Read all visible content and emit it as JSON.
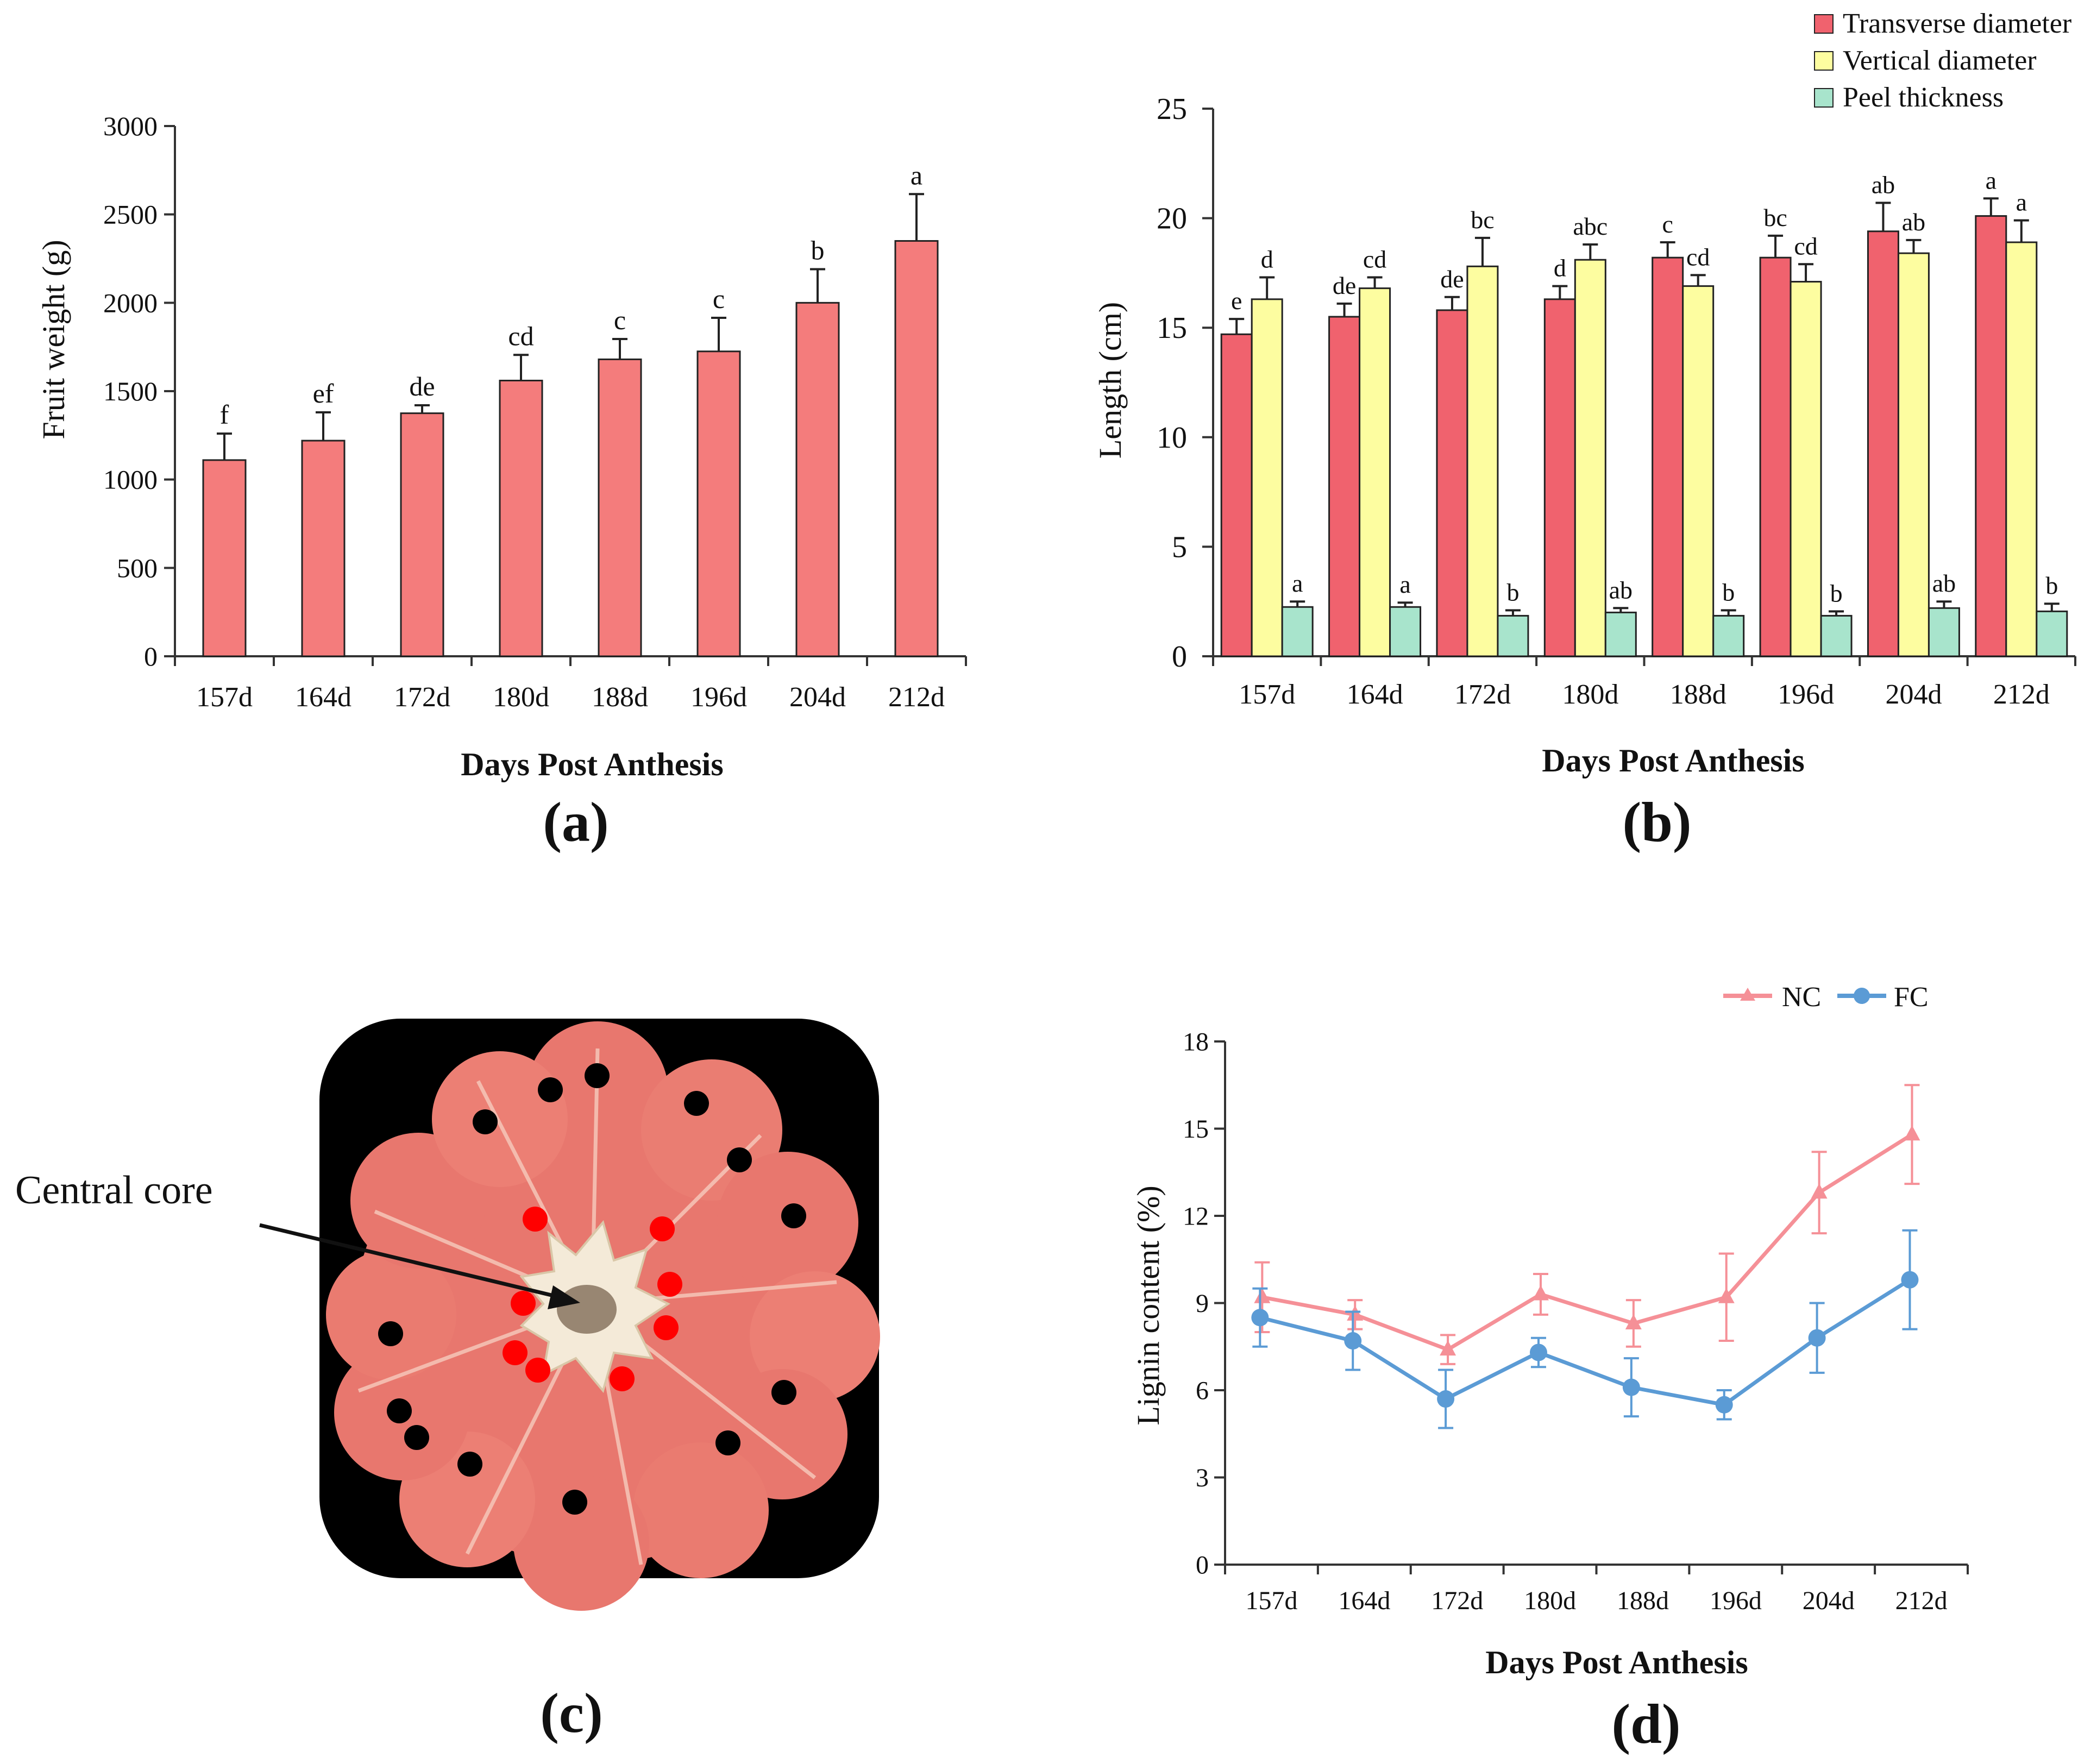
{
  "figure": {
    "x_categories": [
      "157d",
      "164d",
      "172d",
      "180d",
      "188d",
      "196d",
      "204d",
      "212d"
    ],
    "xlabel": "Days Post Anthesis"
  },
  "panels": {
    "a": "(a)",
    "b": "(b)",
    "c": "(c)",
    "d": "(d)"
  },
  "photo": {
    "annotation": "Central core",
    "outer_dot_color": "#000000",
    "inner_dot_color": "#ff0000",
    "flesh_color": "#e8776e"
  },
  "chart_data": [
    {
      "id": "a",
      "type": "bar",
      "title": "",
      "xlabel": "Days Post Anthesis",
      "ylabel": "Fruit weight (g)",
      "ylim": [
        0,
        3000
      ],
      "yticks": [
        0,
        500,
        1000,
        1500,
        2000,
        2500,
        3000
      ],
      "categories": [
        "157d",
        "164d",
        "172d",
        "180d",
        "188d",
        "196d",
        "204d",
        "212d"
      ],
      "series": [
        {
          "name": "Fruit weight",
          "color": "#f47c7c",
          "values": [
            1110,
            1220,
            1375,
            1560,
            1680,
            1725,
            2000,
            2350
          ],
          "errors": [
            150,
            160,
            45,
            145,
            115,
            190,
            190,
            265
          ],
          "letters": [
            "f",
            "ef",
            "de",
            "cd",
            "c",
            "c",
            "b",
            "a"
          ]
        }
      ]
    },
    {
      "id": "b",
      "type": "bar",
      "title": "",
      "xlabel": "Days Post Anthesis",
      "ylabel": "Length (cm)",
      "ylim": [
        0,
        25
      ],
      "yticks": [
        0,
        5,
        10,
        15,
        20,
        25
      ],
      "legend": "top-right",
      "categories": [
        "157d",
        "164d",
        "172d",
        "180d",
        "188d",
        "196d",
        "204d",
        "212d"
      ],
      "series": [
        {
          "name": "Transverse diameter",
          "color": "#f0626e",
          "values": [
            14.7,
            15.5,
            15.8,
            16.3,
            18.2,
            18.2,
            19.4,
            20.1
          ],
          "errors": [
            0.7,
            0.6,
            0.6,
            0.6,
            0.7,
            1.0,
            1.3,
            0.8
          ],
          "letters": [
            "e",
            "de",
            "de",
            "d",
            "c",
            "bc",
            "ab",
            "a"
          ]
        },
        {
          "name": "Vertical diameter",
          "color": "#fdfda0",
          "values": [
            16.3,
            16.8,
            17.8,
            18.1,
            16.9,
            17.1,
            18.4,
            18.9
          ],
          "errors": [
            1.0,
            0.5,
            1.3,
            0.7,
            0.5,
            0.8,
            0.6,
            1.0
          ],
          "letters": [
            "d",
            "cd",
            "bc",
            "abc",
            "cd",
            "cd",
            "ab",
            "a"
          ]
        },
        {
          "name": "Peel thickness",
          "color": "#a8e4cc",
          "values": [
            2.25,
            2.25,
            1.85,
            2.0,
            1.85,
            1.85,
            2.2,
            2.05
          ],
          "errors": [
            0.25,
            0.2,
            0.25,
            0.2,
            0.25,
            0.2,
            0.3,
            0.35
          ],
          "letters": [
            "a",
            "a",
            "b",
            "ab",
            "b",
            "b",
            "ab",
            "b"
          ]
        }
      ]
    },
    {
      "id": "d",
      "type": "line",
      "title": "",
      "xlabel": "Days Post Anthesis",
      "ylabel": "Lignin content (%)",
      "ylim": [
        0,
        18
      ],
      "yticks": [
        0,
        3,
        6,
        9,
        12,
        15,
        18
      ],
      "legend": "top-right",
      "categories": [
        "157d",
        "164d",
        "172d",
        "180d",
        "188d",
        "196d",
        "204d",
        "212d"
      ],
      "series": [
        {
          "name": "NC",
          "color": "#f59097",
          "marker": "triangle",
          "values": [
            9.2,
            8.6,
            7.4,
            9.3,
            8.3,
            9.2,
            12.8,
            14.8
          ],
          "errors": [
            1.2,
            0.5,
            0.5,
            0.7,
            0.8,
            1.5,
            1.4,
            1.7
          ]
        },
        {
          "name": "FC",
          "color": "#5b9bd5",
          "marker": "circle",
          "values": [
            8.5,
            7.7,
            5.7,
            7.3,
            6.1,
            5.5,
            7.8,
            9.8
          ],
          "errors": [
            1.0,
            1.0,
            1.0,
            0.5,
            1.0,
            0.5,
            1.2,
            1.7
          ]
        }
      ]
    }
  ]
}
